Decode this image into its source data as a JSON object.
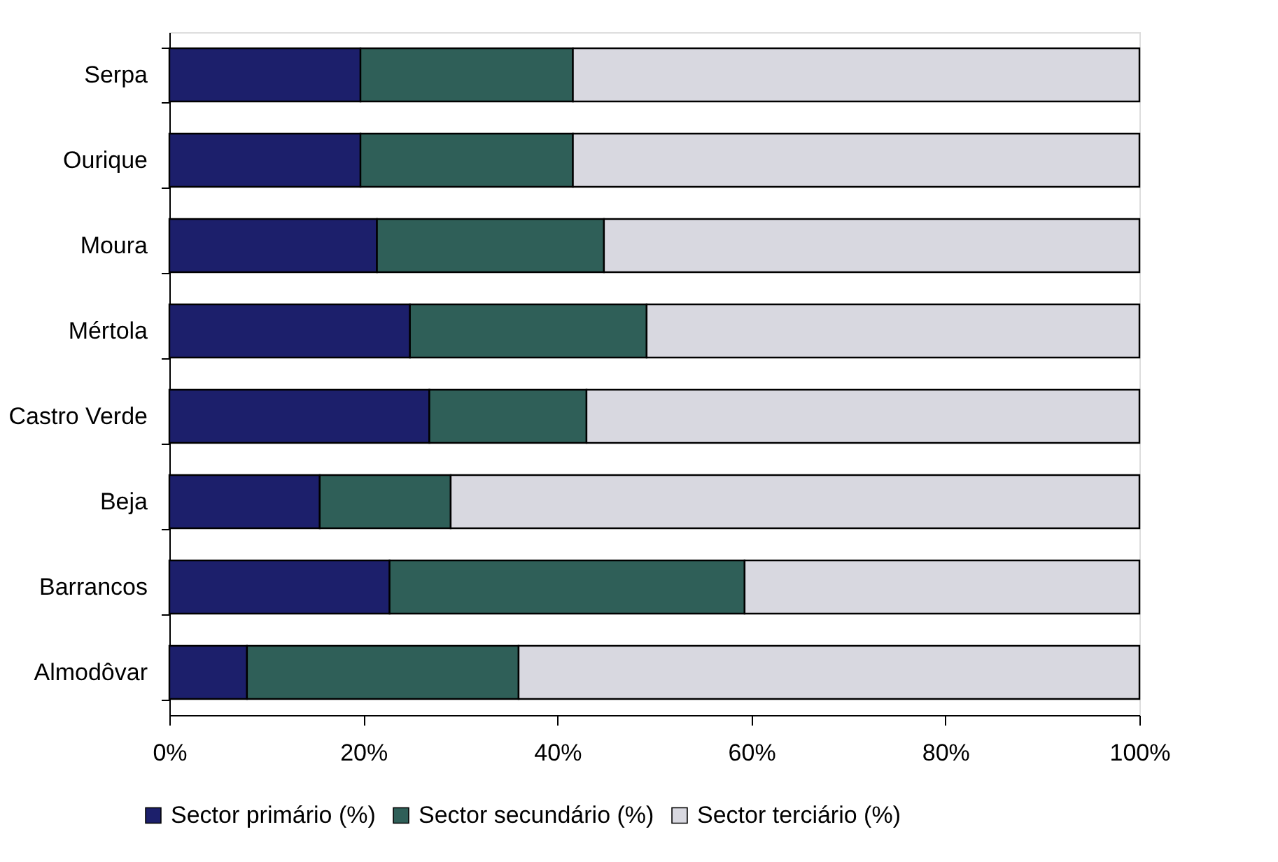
{
  "chart_data": {
    "type": "bar",
    "orientation": "horizontal",
    "stacked": true,
    "categories": [
      "Serpa",
      "Ourique",
      "Moura",
      "Mértola",
      "Castro Verde",
      "Beja",
      "Barrancos",
      "Almodôvar"
    ],
    "series": [
      {
        "name": "Sector primário (%)",
        "color": "#1c1f6b",
        "values": [
          19.7,
          19.7,
          21.4,
          24.8,
          26.8,
          15.5,
          22.7,
          8.0
        ]
      },
      {
        "name": "Sector secundário (%)",
        "color": "#2f5f58",
        "values": [
          21.9,
          21.9,
          23.4,
          24.4,
          16.2,
          13.5,
          36.6,
          28.0
        ]
      },
      {
        "name": "Sector terciário (%)",
        "color": "#d8d8e0",
        "values": [
          58.4,
          58.4,
          55.2,
          50.8,
          57.0,
          71.0,
          40.7,
          64.0
        ]
      }
    ],
    "xlim": [
      0,
      100
    ],
    "xticks": [
      {
        "value": 0,
        "label": "0%"
      },
      {
        "value": 20,
        "label": "20%"
      },
      {
        "value": 40,
        "label": "40%"
      },
      {
        "value": 60,
        "label": "60%"
      },
      {
        "value": 80,
        "label": "80%"
      },
      {
        "value": 100,
        "label": "100%"
      }
    ],
    "grid": false,
    "legend": "bottom"
  }
}
